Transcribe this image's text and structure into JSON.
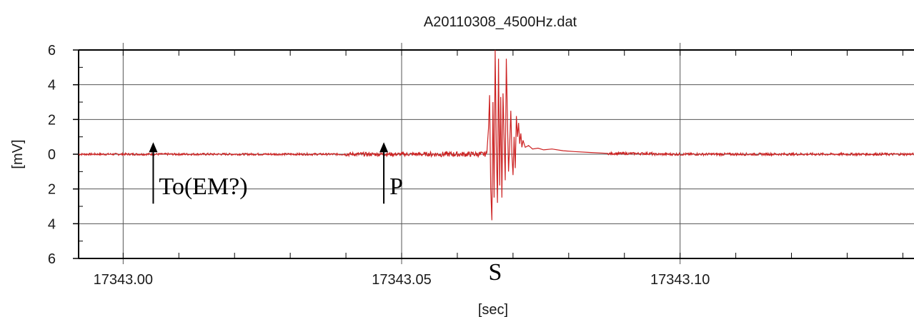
{
  "chart_data": {
    "type": "line",
    "title": "A20110308_4500Hz.dat",
    "xlabel": "[sec]",
    "ylabel": "[mV]",
    "xlim": [
      17342.992,
      17343.142
    ],
    "ylim": [
      -6,
      6
    ],
    "x_ticks": [
      {
        "value": 17343.0,
        "label": "17343.00"
      },
      {
        "value": 17343.05,
        "label": "17343.05"
      },
      {
        "value": 17343.1,
        "label": "17343.10"
      }
    ],
    "y_ticks": [
      {
        "value": 6,
        "label": "6"
      },
      {
        "value": 4,
        "label": "4"
      },
      {
        "value": 2,
        "label": "2"
      },
      {
        "value": 0,
        "label": "0"
      },
      {
        "value": -2,
        "label": "2"
      },
      {
        "value": -4,
        "label": "4"
      },
      {
        "value": -6,
        "label": "6"
      }
    ],
    "grid": true,
    "line_color": "#cc2222",
    "series": [
      {
        "points": [
          [
            17343.0653,
            0.1
          ],
          [
            17343.0656,
            1.5
          ],
          [
            17343.0658,
            3.4
          ],
          [
            17343.066,
            -2.0
          ],
          [
            17343.0662,
            -3.8
          ],
          [
            17343.0664,
            3.0
          ],
          [
            17343.0666,
            -2.5
          ],
          [
            17343.0668,
            6.0
          ],
          [
            17343.067,
            0.5
          ],
          [
            17343.0672,
            -2.8
          ],
          [
            17343.0674,
            5.5
          ],
          [
            17343.0676,
            -1.8
          ],
          [
            17343.0678,
            3.3
          ],
          [
            17343.068,
            -2.5
          ],
          [
            17343.0682,
            3.5
          ],
          [
            17343.0684,
            1.0
          ],
          [
            17343.0686,
            -1.5
          ],
          [
            17343.0688,
            5.5
          ],
          [
            17343.069,
            2.0
          ],
          [
            17343.0692,
            -1.0
          ],
          [
            17343.0694,
            0.5
          ],
          [
            17343.0696,
            2.5
          ],
          [
            17343.0698,
            0.0
          ],
          [
            17343.07,
            -1.2
          ],
          [
            17343.0702,
            1.0
          ],
          [
            17343.0704,
            -0.8
          ],
          [
            17343.0706,
            2.2
          ],
          [
            17343.0708,
            1.0
          ],
          [
            17343.071,
            1.8
          ],
          [
            17343.0712,
            0.6
          ],
          [
            17343.0714,
            1.2
          ],
          [
            17343.0716,
            0.4
          ],
          [
            17343.0718,
            0.8
          ],
          [
            17343.0722,
            0.4
          ],
          [
            17343.0728,
            0.5
          ],
          [
            17343.0735,
            0.3
          ],
          [
            17343.0745,
            0.35
          ],
          [
            17343.0755,
            0.25
          ],
          [
            17343.077,
            0.3
          ],
          [
            17343.079,
            0.2
          ],
          [
            17343.081,
            0.15
          ],
          [
            17343.084,
            0.1
          ],
          [
            17343.087,
            0.05
          ]
        ]
      }
    ],
    "annotations": [
      {
        "text": "To(EM?)",
        "x": 17343.0054,
        "y": -1.2,
        "arrow": true
      },
      {
        "text": "P",
        "x": 17343.0468,
        "y": -1.2,
        "arrow": true
      },
      {
        "text": "S",
        "x": 17343.0668,
        "y": -4.8,
        "arrow": false
      }
    ]
  }
}
